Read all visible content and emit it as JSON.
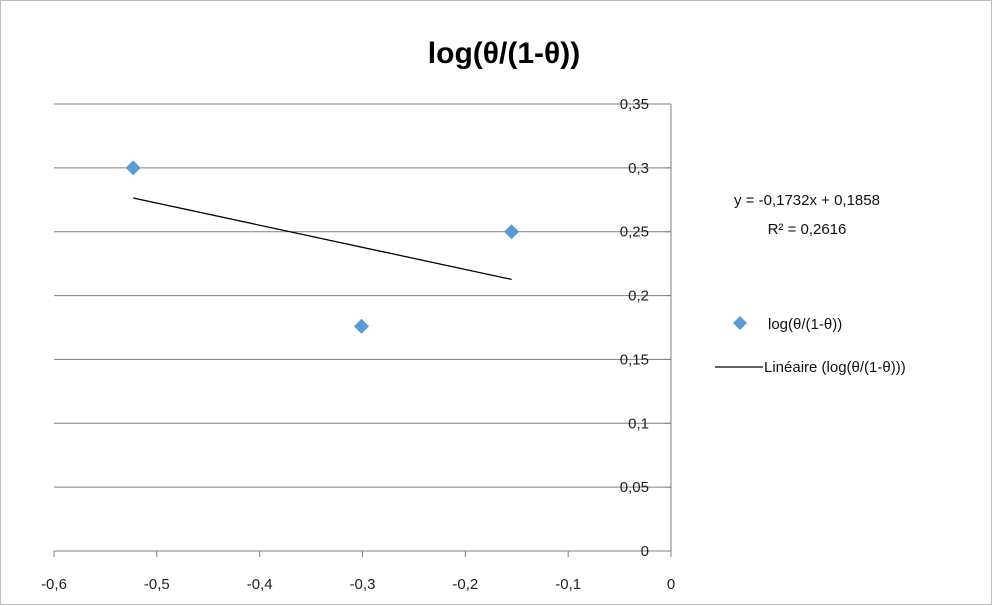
{
  "chart_data": {
    "type": "scatter",
    "title": "log(θ/(1-θ))",
    "xlim": [
      -0.6,
      0
    ],
    "ylim": [
      0,
      0.35
    ],
    "x_ticks": [
      -0.6,
      -0.5,
      -0.4,
      -0.3,
      -0.2,
      -0.1,
      0
    ],
    "y_ticks": [
      0,
      0.05,
      0.1,
      0.15,
      0.2,
      0.25,
      0.3,
      0.35
    ],
    "x_tick_labels": [
      "-0,6",
      "-0,5",
      "-0,4",
      "-0,3",
      "-0,2",
      "-0,1",
      "0"
    ],
    "y_tick_labels": [
      "0",
      "0,05",
      "0,1",
      "0,15",
      "0,2",
      "0,25",
      "0,3",
      "0,35"
    ],
    "grid": true,
    "series": [
      {
        "name": "log(θ/(1-θ))",
        "marker": "diamond",
        "color": "#5B9BD5",
        "x": [
          -0.523,
          -0.301,
          -0.155
        ],
        "y": [
          0.3,
          0.176,
          0.25
        ]
      }
    ],
    "trendline": {
      "name": "Linéaire (log(θ/(1-θ)))",
      "type": "linear",
      "color": "#000000",
      "slope": -0.1732,
      "intercept": 0.1858,
      "x_range": [
        -0.523,
        -0.155
      ],
      "equation_label": "y = -0,1732x + 0,1858",
      "r2_label": "R² = 0,2616"
    },
    "legend_position": "right"
  }
}
